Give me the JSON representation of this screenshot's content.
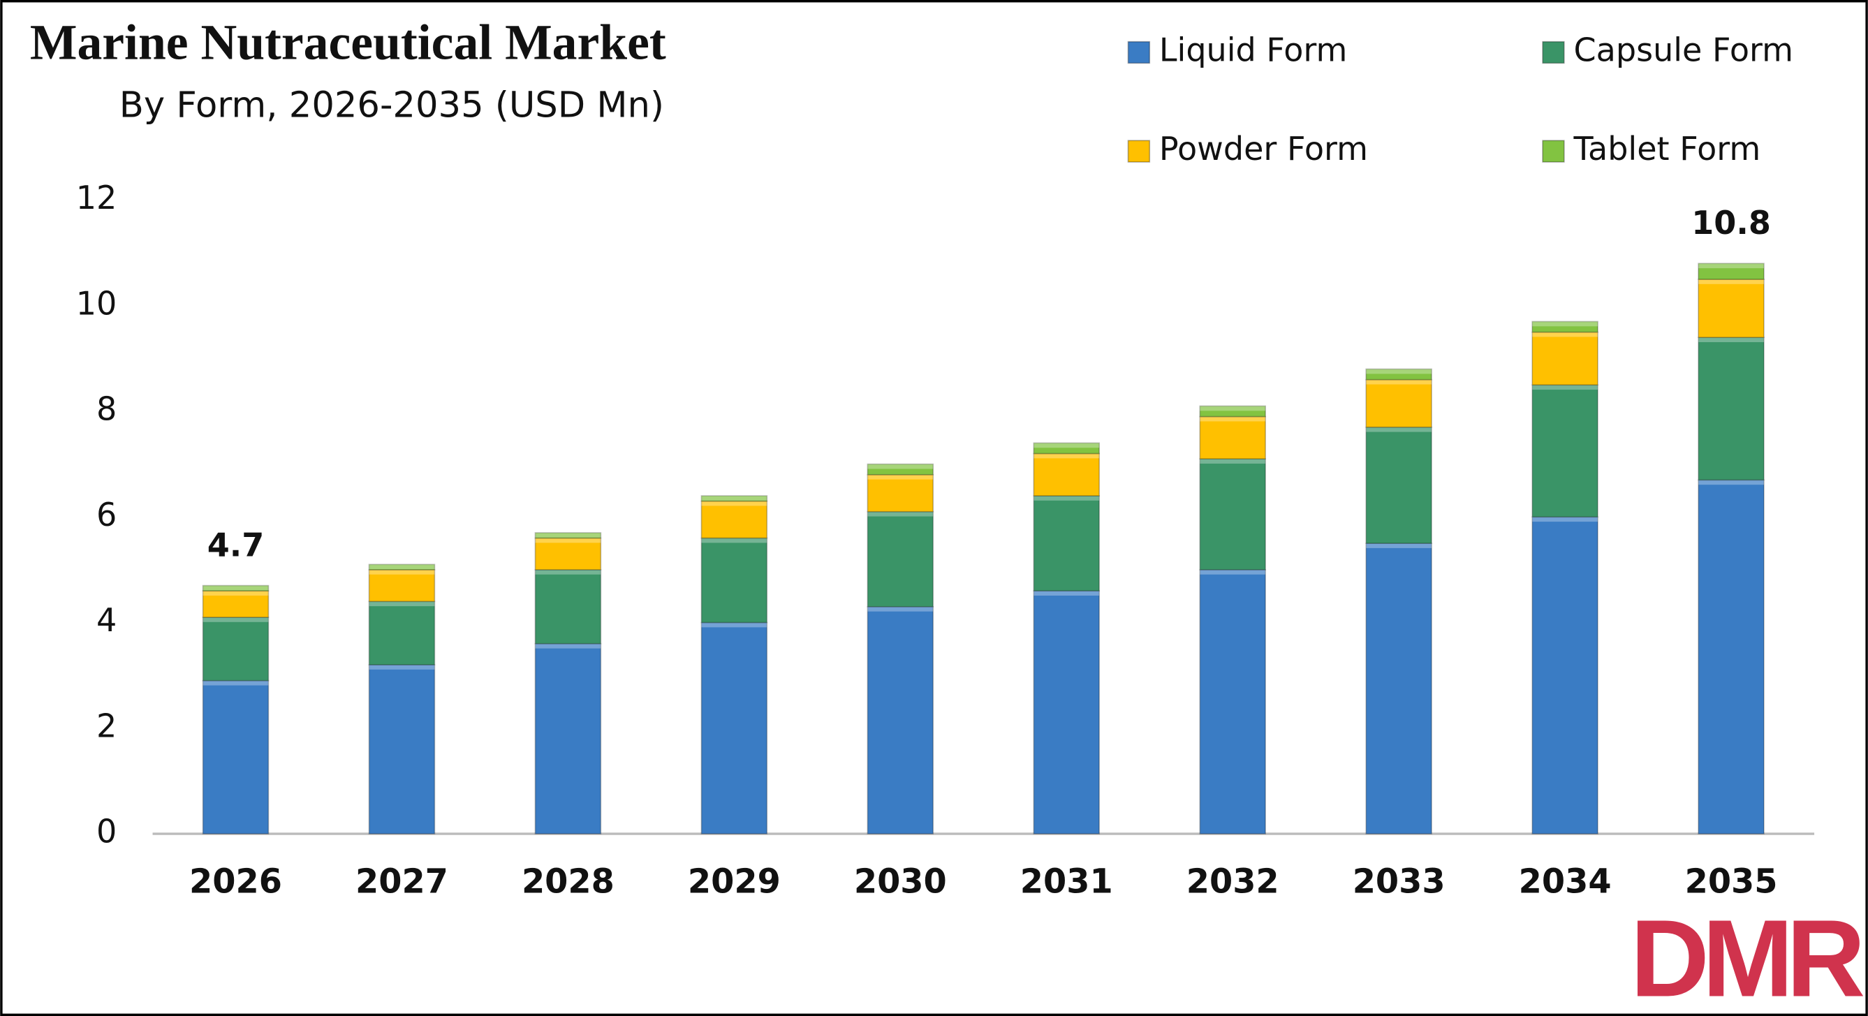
{
  "chart_data": {
    "type": "stacked-bar",
    "title": "Marine Nutraceutical Market",
    "subtitle": "By Form, 2026-2035 (USD Mn)",
    "categories": [
      "2026",
      "2027",
      "2028",
      "2029",
      "2030",
      "2031",
      "2032",
      "2033",
      "2034",
      "2035"
    ],
    "series": [
      {
        "name": "Liquid Form",
        "color": "#3a7cc4",
        "values": [
          2.9,
          3.2,
          3.6,
          4.0,
          4.3,
          4.6,
          5.0,
          5.5,
          6.0,
          6.7
        ]
      },
      {
        "name": "Capsule Form",
        "color": "#3a9467",
        "values": [
          1.2,
          1.2,
          1.4,
          1.6,
          1.8,
          1.8,
          2.1,
          2.2,
          2.5,
          2.7
        ]
      },
      {
        "name": "Powder Form",
        "color": "#ffc000",
        "values": [
          0.5,
          0.6,
          0.6,
          0.7,
          0.7,
          0.8,
          0.8,
          0.9,
          1.0,
          1.1
        ]
      },
      {
        "name": "Tablet Form",
        "color": "#82c341",
        "values": [
          0.1,
          0.1,
          0.1,
          0.1,
          0.2,
          0.2,
          0.2,
          0.2,
          0.2,
          0.3
        ]
      }
    ],
    "ylim": [
      0,
      12
    ],
    "yticks": [
      0,
      2,
      4,
      6,
      8,
      10,
      12
    ],
    "grid": false,
    "annotations": [
      {
        "x": "2026",
        "value": 4.7
      },
      {
        "x": "2035",
        "value": 10.8
      }
    ],
    "logo": "DMR"
  }
}
